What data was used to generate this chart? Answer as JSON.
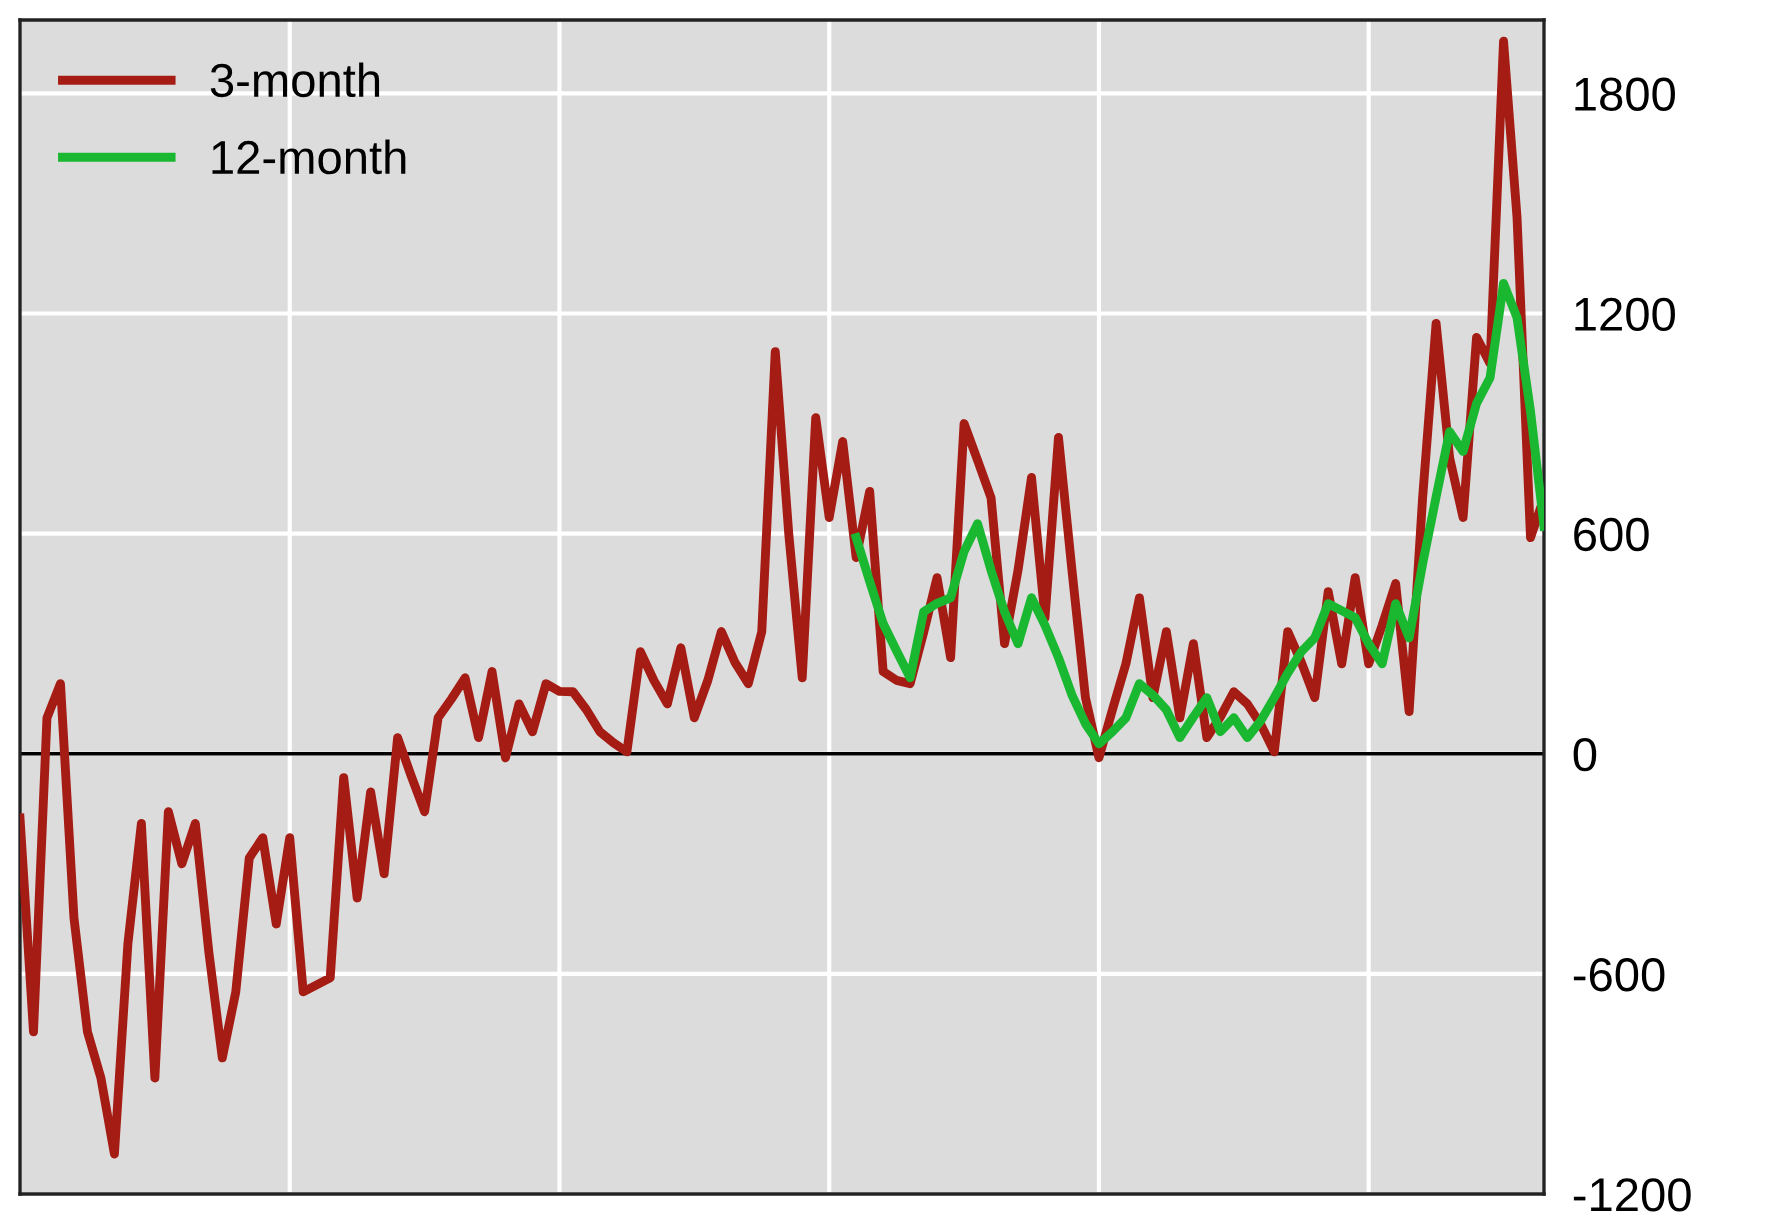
{
  "chart_data": {
    "type": "line",
    "categories": [
      null,
      null,
      null,
      null,
      null,
      null,
      null,
      null,
      null,
      null,
      null,
      null,
      null,
      null,
      null,
      null,
      null,
      null,
      null,
      null,
      null,
      null,
      null,
      null,
      null,
      null,
      null,
      null,
      null,
      null,
      null,
      null,
      null,
      null,
      null,
      null,
      null,
      null,
      null,
      null,
      null,
      null,
      null,
      null,
      null,
      null,
      null,
      null,
      null,
      null,
      null,
      null,
      null,
      null,
      null,
      null,
      null,
      null,
      null,
      null,
      null,
      null,
      null,
      null,
      null,
      null,
      null,
      null,
      null,
      null,
      null,
      null,
      null,
      null,
      null,
      null,
      null,
      null,
      null,
      null,
      null,
      null,
      null,
      null,
      null,
      null,
      null,
      null,
      null,
      null,
      null,
      null,
      null,
      null,
      null,
      null,
      null,
      null,
      null,
      null,
      null,
      null,
      null,
      null,
      null,
      null,
      null,
      null,
      null,
      null,
      null,
      null,
      null,
      null
    ],
    "ylim": [
      -1200,
      2000
    ],
    "yticks": [
      -1200,
      -600,
      0,
      600,
      1200,
      1800
    ],
    "tick_labels": "y",
    "grid": true,
    "legend": "top left",
    "line_style": "solid",
    "marker": "none",
    "ref_lines": [
      {
        "axis": "y",
        "value": 0,
        "color": "#000000"
      }
    ],
    "series": [
      {
        "name": "3-month",
        "color": "#a51c14",
        "values": [
          -175,
          -758,
          98,
          191,
          -447,
          -758,
          -884,
          -1091,
          -518,
          -190,
          -884,
          -158,
          -300,
          -190,
          -540,
          -829,
          -649,
          -284,
          -229,
          -464,
          -229,
          -649,
          -630,
          -611,
          -65,
          -393,
          -104,
          -327,
          44,
          -60,
          -158,
          98,
          150,
          207,
          44,
          224,
          -11,
          136,
          60,
          191,
          170,
          169,
          120,
          60,
          30,
          5,
          278,
          200,
          136,
          289,
          98,
          200,
          333,
          250,
          191,
          333,
          1096,
          600,
          207,
          916,
          644,
          851,
          535,
          715,
          224,
          200,
          191,
          330,
          480,
          262,
          900,
          800,
          698,
          300,
          500,
          753,
          371,
          862,
          500,
          153,
          -11,
          120,
          245,
          425,
          153,
          333,
          98,
          300,
          44,
          100,
          169,
          136,
          80,
          5,
          333,
          250,
          153,
          442,
          245,
          480,
          245,
          350,
          464,
          115,
          698,
          1173,
          807,
          644,
          1135,
          1064,
          1942,
          1462,
          589,
          698
        ]
      },
      {
        "name": "12-month",
        "color": "#19b830",
        "values": [
          null,
          null,
          null,
          null,
          null,
          null,
          null,
          null,
          null,
          null,
          null,
          null,
          null,
          null,
          null,
          null,
          null,
          null,
          null,
          null,
          null,
          null,
          null,
          null,
          null,
          null,
          null,
          null,
          null,
          null,
          null,
          null,
          null,
          null,
          null,
          null,
          null,
          null,
          null,
          null,
          null,
          null,
          null,
          null,
          null,
          null,
          null,
          null,
          null,
          null,
          null,
          null,
          null,
          null,
          null,
          null,
          null,
          null,
          null,
          null,
          null,
          null,
          589,
          470,
          355,
          280,
          207,
          387,
          410,
          425,
          551,
          627,
          500,
          387,
          300,
          425,
          350,
          262,
          160,
          82,
          27,
          60,
          98,
          191,
          160,
          120,
          44,
          100,
          153,
          60,
          98,
          44,
          90,
          153,
          220,
          278,
          316,
          409,
          390,
          371,
          300,
          245,
          409,
          316,
          518,
          700,
          878,
          824,
          955,
          1025,
          1282,
          1189,
          933,
          620
        ]
      }
    ]
  }
}
